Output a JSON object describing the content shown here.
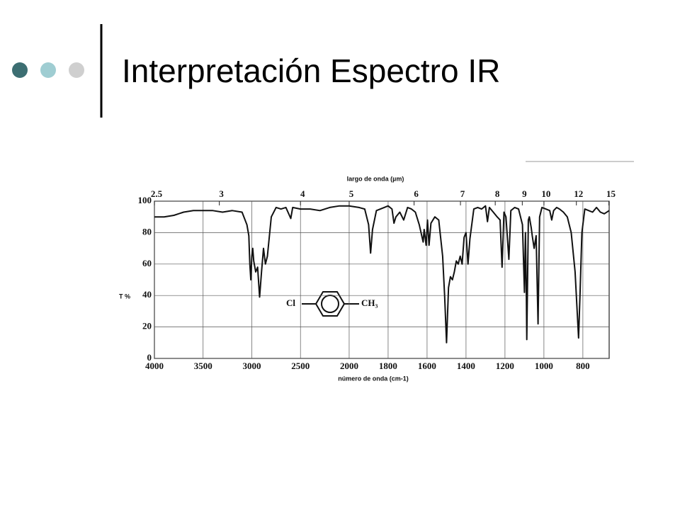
{
  "slide": {
    "title": "Interpretación Espectro IR"
  },
  "chart_data": {
    "type": "line",
    "x_label": "número de onda (cm-1)",
    "x2_label": "largo de onda (µm)",
    "y_label": "T %",
    "annotations": [
      "Cl",
      "CH₃"
    ],
    "color": "#111111",
    "grid": true,
    "xscale_break": 2000,
    "xlim": [
      4000,
      665
    ],
    "ylim": [
      0,
      100
    ],
    "xticks": [
      4000,
      3500,
      3000,
      2500,
      2000,
      1800,
      1600,
      1400,
      1200,
      1000,
      800
    ],
    "yticks": [
      0,
      20,
      40,
      60,
      80,
      100
    ],
    "x2ticks": [
      2.5,
      3,
      4,
      5,
      6,
      7,
      8,
      9,
      10,
      12,
      15
    ],
    "x": [
      4000,
      3900,
      3800,
      3700,
      3600,
      3500,
      3400,
      3300,
      3200,
      3100,
      3050,
      3030,
      3020,
      3010,
      3000,
      2990,
      2980,
      2960,
      2940,
      2920,
      2900,
      2880,
      2860,
      2840,
      2800,
      2750,
      2700,
      2650,
      2600,
      2580,
      2500,
      2400,
      2300,
      2200,
      2100,
      2000,
      1950,
      1920,
      1900,
      1890,
      1880,
      1860,
      1820,
      1800,
      1780,
      1770,
      1760,
      1740,
      1720,
      1700,
      1680,
      1660,
      1640,
      1620,
      1615,
      1605,
      1598,
      1590,
      1580,
      1560,
      1540,
      1520,
      1510,
      1500,
      1490,
      1480,
      1470,
      1460,
      1450,
      1440,
      1430,
      1420,
      1410,
      1400,
      1390,
      1380,
      1360,
      1340,
      1320,
      1300,
      1290,
      1280,
      1260,
      1240,
      1225,
      1215,
      1205,
      1195,
      1180,
      1170,
      1150,
      1130,
      1110,
      1100,
      1095,
      1090,
      1088,
      1080,
      1075,
      1065,
      1060,
      1050,
      1040,
      1030,
      1022,
      1010,
      990,
      970,
      960,
      950,
      935,
      920,
      900,
      880,
      860,
      840,
      822,
      815,
      805,
      790,
      770,
      750,
      730,
      710,
      690,
      665
    ],
    "values": [
      90,
      90,
      91,
      93,
      94,
      94,
      94,
      93,
      94,
      93,
      85,
      78,
      60,
      50,
      65,
      70,
      62,
      55,
      58,
      39,
      55,
      70,
      60,
      65,
      90,
      96,
      95,
      96,
      89,
      96,
      95,
      95,
      94,
      96,
      97,
      97,
      96,
      95,
      85,
      67,
      82,
      94,
      96,
      97,
      95,
      86,
      90,
      93,
      88,
      96,
      95,
      93,
      85,
      74,
      82,
      72,
      88,
      72,
      86,
      90,
      88,
      65,
      40,
      10,
      45,
      52,
      50,
      55,
      62,
      60,
      65,
      60,
      77,
      80,
      60,
      76,
      95,
      96,
      95,
      97,
      87,
      96,
      93,
      90,
      88,
      58,
      93,
      90,
      63,
      94,
      96,
      95,
      85,
      42,
      80,
      40,
      12,
      88,
      90,
      83,
      78,
      70,
      78,
      22,
      90,
      96,
      95,
      94,
      88,
      94,
      96,
      95,
      93,
      90,
      80,
      55,
      13,
      40,
      80,
      95,
      94,
      93,
      96,
      93,
      92,
      94
    ]
  }
}
